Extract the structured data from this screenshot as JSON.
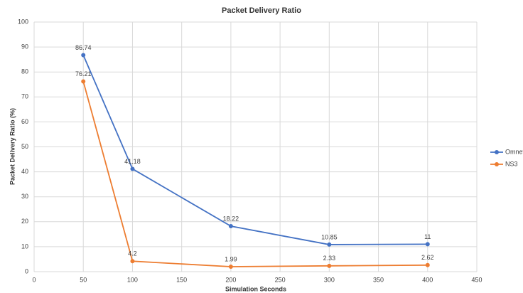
{
  "chart_data": {
    "type": "line",
    "title": "Packet Delivery Ratio",
    "x_label": "Simulation Seconds",
    "y_label": "Packet Delivery Ratio (%)",
    "x": [
      50,
      100,
      200,
      300,
      400
    ],
    "series": [
      {
        "name": "Omnet+",
        "color": "#4472c4",
        "values": [
          86.74,
          41.18,
          18.22,
          10.85,
          11
        ]
      },
      {
        "name": "NS3",
        "color": "#ed7d31",
        "values": [
          76.21,
          4.2,
          1.99,
          2.33,
          2.62
        ]
      }
    ],
    "xlim": [
      0,
      450
    ],
    "xticks": [
      0,
      50,
      100,
      150,
      200,
      250,
      300,
      350,
      400,
      450
    ],
    "ylim": [
      0,
      100
    ],
    "yticks": [
      0,
      10,
      20,
      30,
      40,
      50,
      60,
      70,
      80,
      90,
      100
    ],
    "grid": true,
    "legend": "right"
  }
}
